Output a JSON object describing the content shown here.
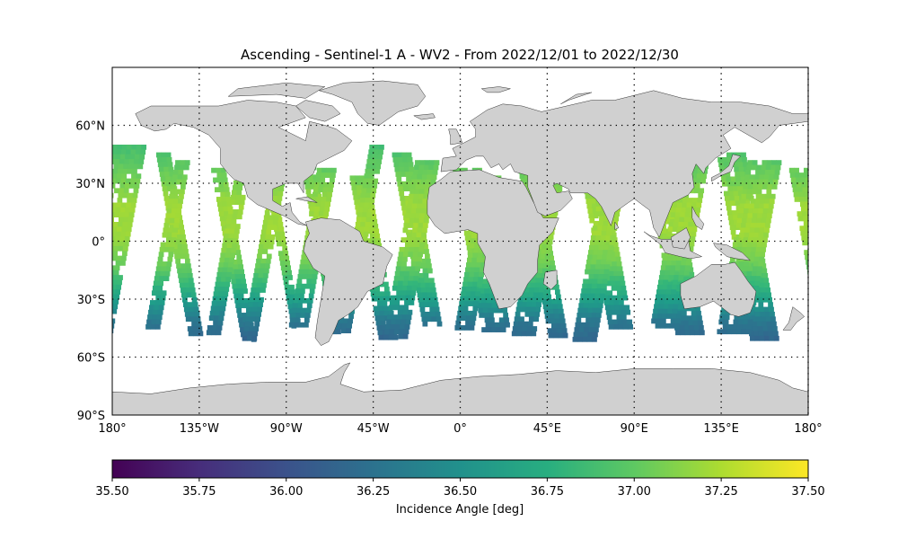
{
  "title": "Ascending - Sentinel-1 A - WV2 - From 2022/12/01 to 2022/12/30",
  "map": {
    "projection": "PlateCarree",
    "lon_range": [
      -180,
      180
    ],
    "lat_range": [
      -90,
      90
    ],
    "lat_tick_labels": [
      {
        "lat": 60,
        "label": "60°N"
      },
      {
        "lat": 30,
        "label": "30°N"
      },
      {
        "lat": 0,
        "label": "0°"
      },
      {
        "lat": -30,
        "label": "30°S"
      },
      {
        "lat": -60,
        "label": "60°S"
      },
      {
        "lat": -90,
        "label": "90°S"
      }
    ],
    "lon_tick_labels": [
      {
        "lon": -180,
        "label": "180°"
      },
      {
        "lon": -135,
        "label": "135°W"
      },
      {
        "lon": -90,
        "label": "90°W"
      },
      {
        "lon": -45,
        "label": "45°W"
      },
      {
        "lon": 0,
        "label": "0°"
      },
      {
        "lon": 45,
        "label": "45°E"
      },
      {
        "lon": 90,
        "label": "90°E"
      },
      {
        "lon": 135,
        "label": "135°E"
      },
      {
        "lon": 180,
        "label": "180°"
      }
    ],
    "gridlines": {
      "style": "dotted",
      "lons": [
        -135,
        -90,
        -45,
        0,
        45,
        90,
        135,
        180
      ],
      "lats": [
        60,
        30,
        0,
        -30,
        -60
      ]
    },
    "land_color": "#d0d0d0",
    "coast_color": "#333333"
  },
  "chart_data": {
    "type": "heatmap",
    "variable": "Incidence Angle",
    "unit": "deg",
    "value_range": [
      35.5,
      37.5
    ],
    "colormap": "viridis",
    "latitude_band": [
      -50,
      50
    ],
    "value_by_latitude": [
      {
        "lat": 50,
        "value": 36.9
      },
      {
        "lat": 35,
        "value": 37.05
      },
      {
        "lat": 20,
        "value": 37.2
      },
      {
        "lat": 5,
        "value": 37.2
      },
      {
        "lat": -10,
        "value": 37.05
      },
      {
        "lat": -20,
        "value": 36.85
      },
      {
        "lat": -30,
        "value": 36.6
      },
      {
        "lat": -40,
        "value": 36.3
      },
      {
        "lat": -50,
        "value": 36.15
      }
    ]
  },
  "colorbar": {
    "label": "Incidence Angle [deg]",
    "ticks": [
      {
        "value": 35.5,
        "label": "35.50"
      },
      {
        "value": 35.75,
        "label": "35.75"
      },
      {
        "value": 36.0,
        "label": "36.00"
      },
      {
        "value": 36.25,
        "label": "36.25"
      },
      {
        "value": 36.5,
        "label": "36.50"
      },
      {
        "value": 36.75,
        "label": "36.75"
      },
      {
        "value": 37.0,
        "label": "37.00"
      },
      {
        "value": 37.25,
        "label": "37.25"
      },
      {
        "value": 37.5,
        "label": "37.50"
      }
    ]
  }
}
